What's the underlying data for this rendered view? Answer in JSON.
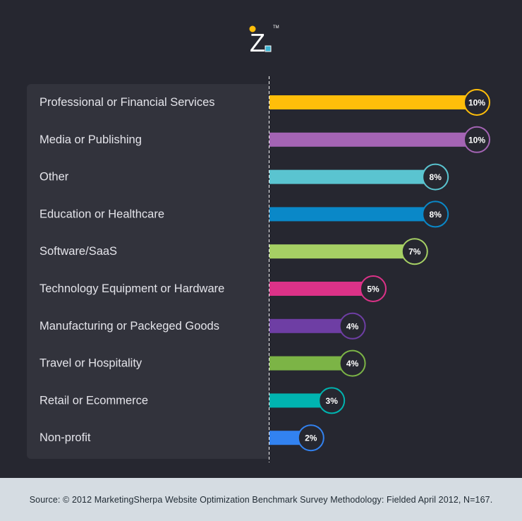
{
  "logo": {
    "letter": "Z",
    "trademark": "TM"
  },
  "chart_data": {
    "type": "bar",
    "orientation": "horizontal",
    "categories": [
      "Professional or Financial Services",
      "Media or Publishing",
      "Other",
      "Education or Healthcare",
      "Software/SaaS",
      "Technology Equipment or Hardware",
      "Manufacturing or Packeged Goods",
      "Travel or Hospitality",
      "Retail or Ecommerce",
      "Non-profit"
    ],
    "values": [
      10,
      10,
      8,
      8,
      7,
      5,
      4,
      4,
      3,
      2
    ],
    "value_labels": [
      "10%",
      "10%",
      "8%",
      "8%",
      "7%",
      "5%",
      "4%",
      "4%",
      "3%",
      "2%"
    ],
    "colors": [
      "#ffbe0a",
      "#a464b4",
      "#5ac4d0",
      "#0a88c8",
      "#a6d064",
      "#dc3288",
      "#6e3ea4",
      "#7cb446",
      "#00b4b0",
      "#3282f0"
    ],
    "xlim": [
      0,
      10
    ],
    "title": "",
    "xlabel": "",
    "ylabel": ""
  },
  "footer": {
    "source": "Source: © 2012 MarketingSherpa Website Optimization Benchmark Survey Methodology: Fielded April 2012, N=167."
  }
}
